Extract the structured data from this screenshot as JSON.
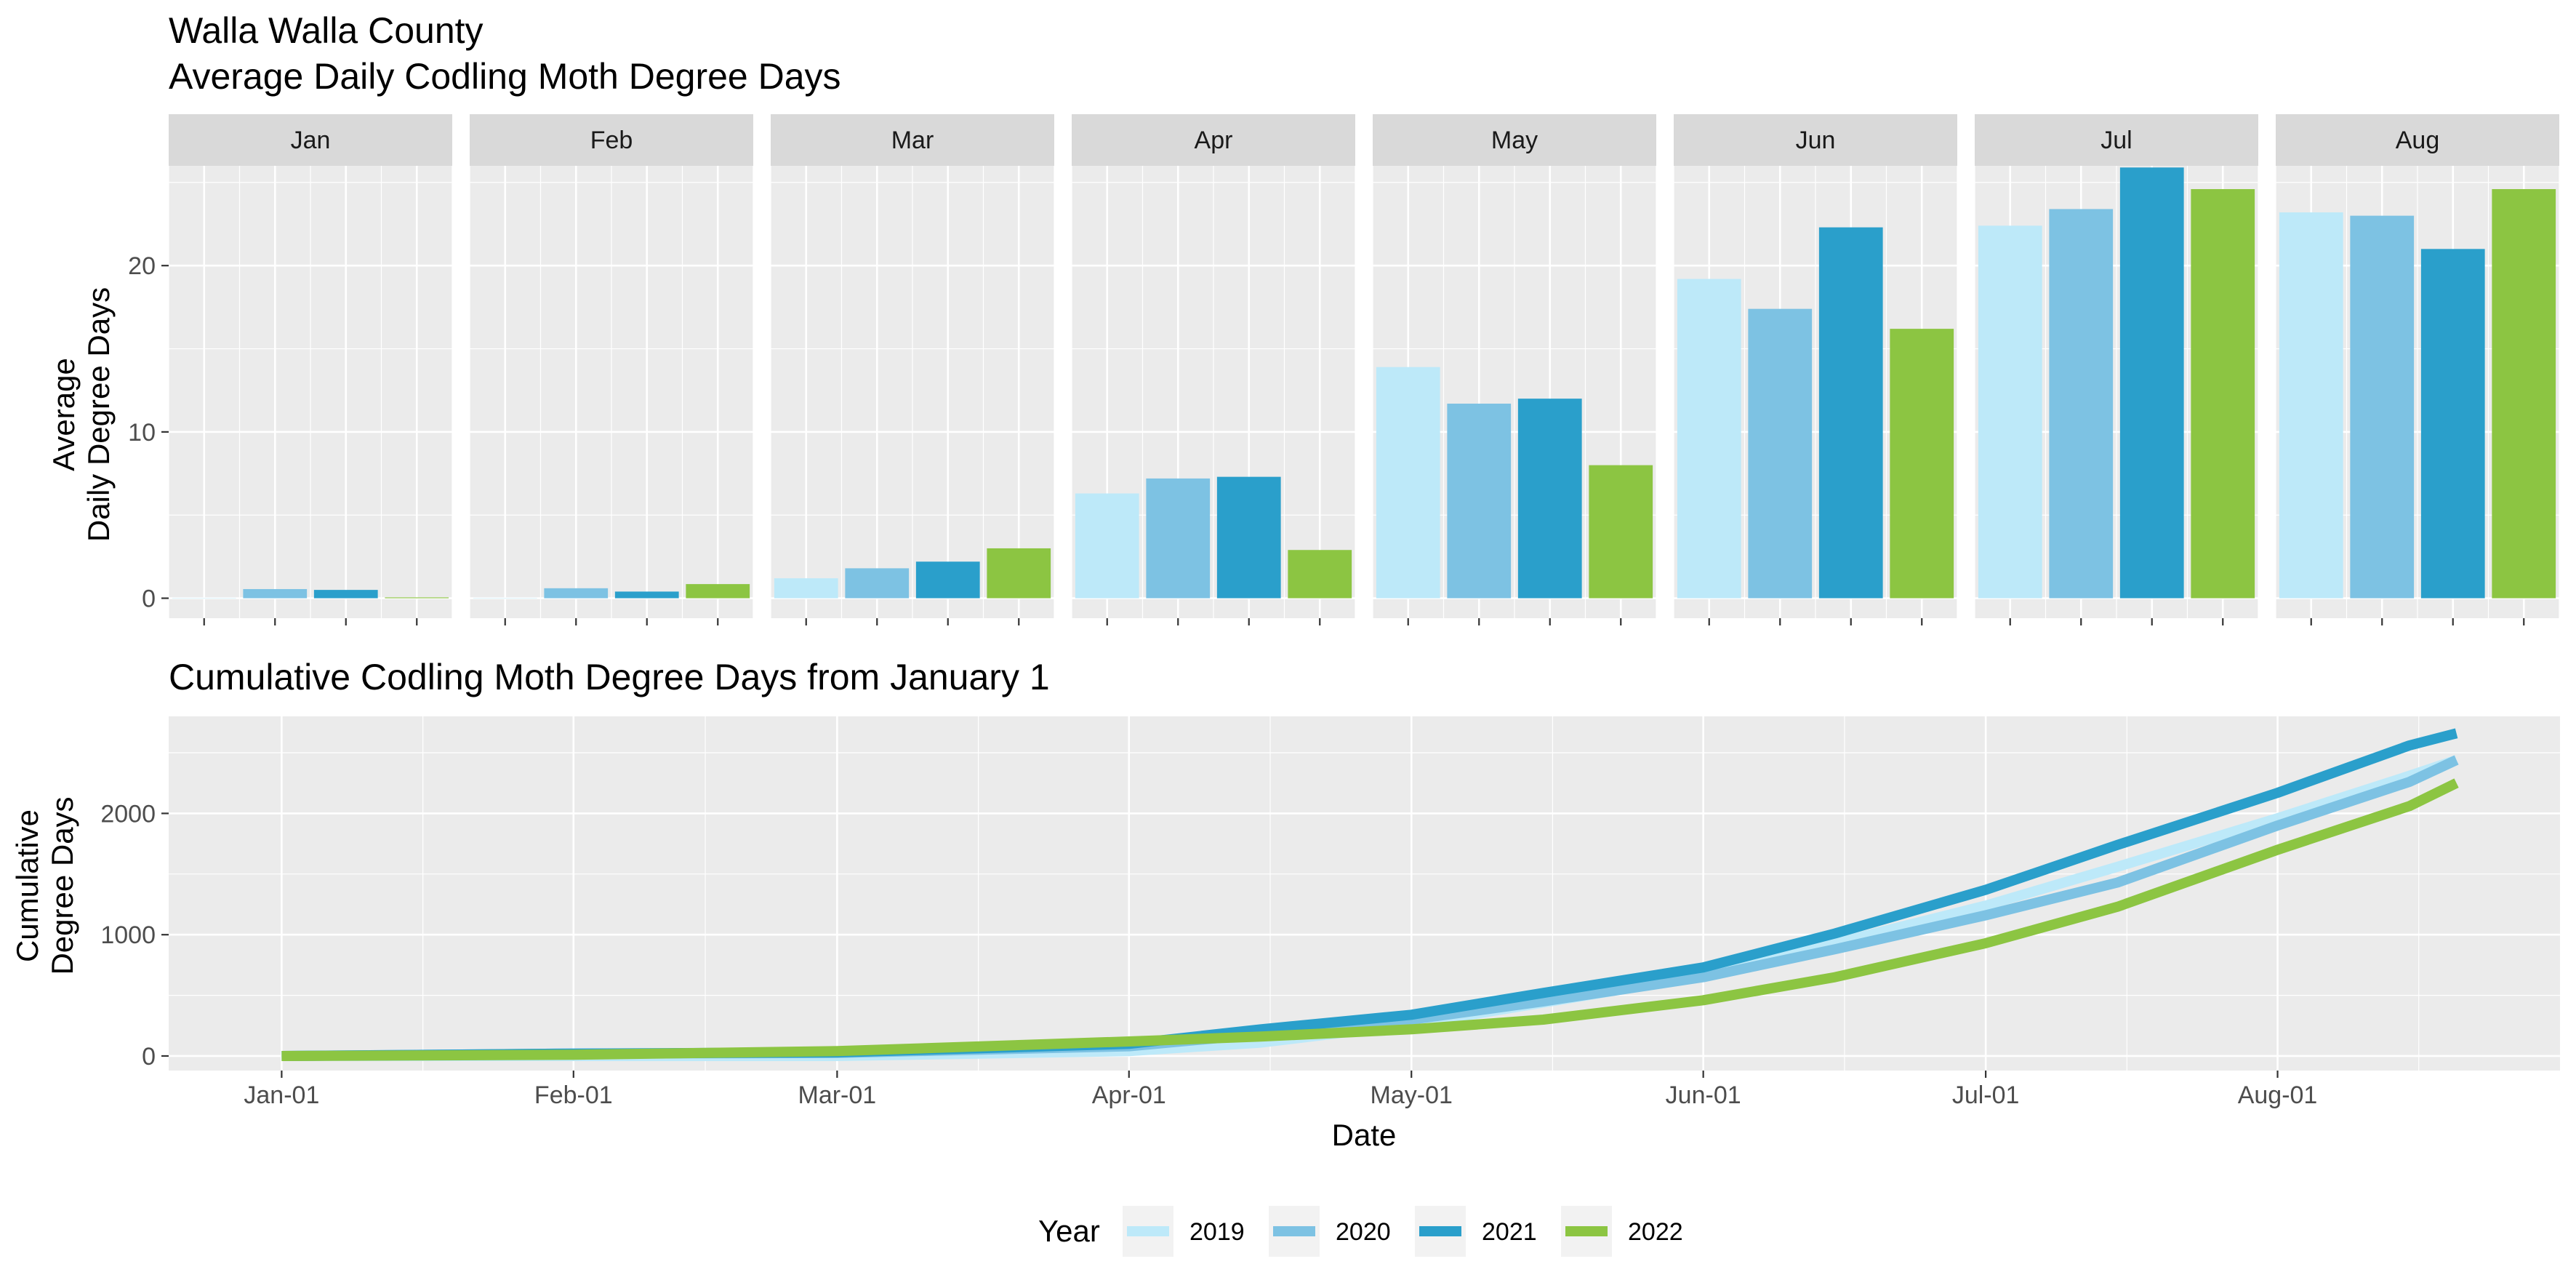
{
  "title_line1": "Walla Walla County",
  "title_line2": "Average Daily Codling Moth Degree Days",
  "colors": {
    "2019": "#bde9f9",
    "2020": "#7dc2e3",
    "2021": "#2a9fcb",
    "2022": "#8cc542"
  },
  "chart_data": [
    {
      "type": "bar",
      "title": "Average Daily Codling Moth Degree Days",
      "ylabel_line1": "Average",
      "ylabel_line2": "Daily Degree Days",
      "ylim": [
        -1.2,
        26
      ],
      "yticks": [
        0,
        10,
        20
      ],
      "facets": [
        "Jan",
        "Feb",
        "Mar",
        "Apr",
        "May",
        "Jun",
        "Jul",
        "Aug"
      ],
      "series": [
        {
          "name": "2019",
          "values": [
            0.0,
            0.0,
            1.2,
            6.3,
            13.9,
            19.2,
            22.4,
            23.2
          ]
        },
        {
          "name": "2020",
          "values": [
            0.55,
            0.6,
            1.8,
            7.2,
            11.7,
            17.4,
            23.4,
            23.0
          ]
        },
        {
          "name": "2021",
          "values": [
            0.5,
            0.4,
            2.2,
            7.3,
            12.0,
            22.3,
            25.9,
            21.0
          ]
        },
        {
          "name": "2022",
          "values": [
            0.05,
            0.85,
            3.0,
            2.9,
            8.0,
            16.2,
            24.6,
            24.6
          ]
        }
      ]
    },
    {
      "type": "line",
      "title": "Cumulative Codling Moth Degree Days from January 1",
      "xlabel": "Date",
      "ylabel_line1": "Cumulative",
      "ylabel_line2": "Degree Days",
      "xlim": [
        "2021-12-20",
        "2022-08-31"
      ],
      "ylim": [
        -120,
        2800
      ],
      "xticks": [
        "Jan-01",
        "Feb-01",
        "Mar-01",
        "Apr-01",
        "May-01",
        "Jun-01",
        "Jul-01",
        "Aug-01"
      ],
      "xtick_dates": [
        "2022-01-01",
        "2022-02-01",
        "2022-03-01",
        "2022-04-01",
        "2022-05-01",
        "2022-06-01",
        "2022-07-01",
        "2022-08-01"
      ],
      "yticks": [
        0,
        1000,
        2000
      ],
      "x": [
        "2022-01-01",
        "2022-02-01",
        "2022-03-01",
        "2022-04-01",
        "2022-04-15",
        "2022-05-01",
        "2022-05-15",
        "2022-06-01",
        "2022-06-15",
        "2022-07-01",
        "2022-07-15",
        "2022-08-01",
        "2022-08-15",
        "2022-08-20"
      ],
      "series": [
        {
          "name": "2019",
          "values": [
            0,
            0,
            0,
            40,
            110,
            260,
            440,
            660,
            930,
            1240,
            1560,
            1960,
            2310,
            2440
          ]
        },
        {
          "name": "2020",
          "values": [
            0,
            20,
            25,
            80,
            180,
            300,
            450,
            650,
            880,
            1160,
            1430,
            1900,
            2260,
            2440
          ]
        },
        {
          "name": "2021",
          "values": [
            0,
            20,
            30,
            100,
            220,
            340,
            520,
            730,
            1010,
            1370,
            1740,
            2170,
            2560,
            2660
          ]
        },
        {
          "name": "2022",
          "values": [
            0,
            10,
            40,
            120,
            160,
            220,
            300,
            460,
            650,
            930,
            1230,
            1700,
            2060,
            2250
          ]
        }
      ]
    }
  ],
  "legend": {
    "title": "Year",
    "entries": [
      "2019",
      "2020",
      "2021",
      "2022"
    ]
  }
}
